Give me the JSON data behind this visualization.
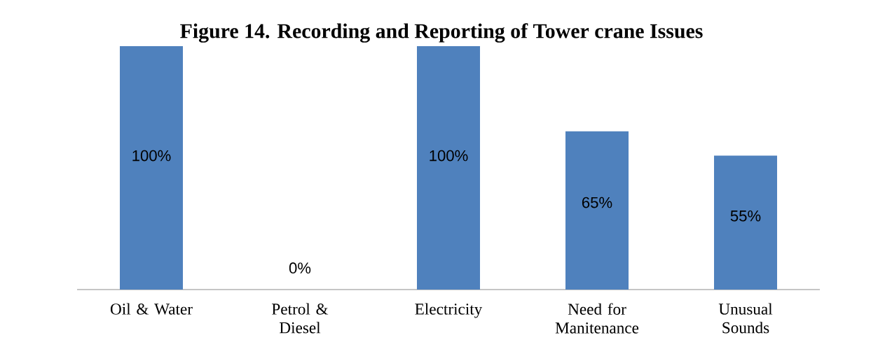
{
  "chart_data": {
    "type": "bar",
    "title": "Figure 14. Recording and Reporting of Tower crane Issues",
    "categories": [
      "Oil & Water",
      "Petrol & Diesel",
      "Electricity",
      "Need for Manitenance",
      "Unusual Sounds"
    ],
    "values": [
      100,
      0,
      100,
      65,
      55
    ],
    "value_labels": [
      "100%",
      "0%",
      "100%",
      "65%",
      "55%"
    ],
    "color": "#4f81bd"
  }
}
